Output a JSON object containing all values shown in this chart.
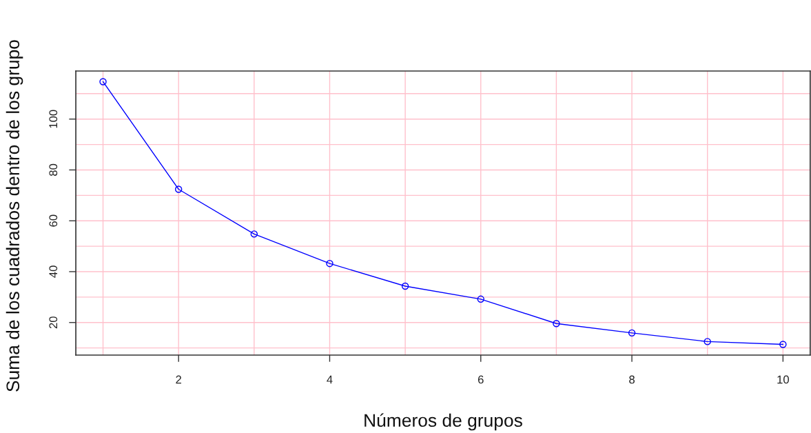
{
  "chart_data": {
    "type": "line",
    "xlabel": "Números de grupos",
    "ylabel": "Suma de los cuadrados dentro de los grupo",
    "x": [
      1,
      2,
      3,
      4,
      5,
      6,
      7,
      8,
      9,
      10
    ],
    "series": [
      {
        "color": "#0000ff",
        "values": [
          114.7,
          72.4,
          54.8,
          43.2,
          34.3,
          29.2,
          19.6,
          15.9,
          12.5,
          11.4
        ]
      }
    ],
    "marker": "circle",
    "line_style": "solid",
    "xlim": [
      0.64,
      10.36
    ],
    "ylim": [
      7.2,
      118.9
    ],
    "xticks": [
      2,
      4,
      6,
      8,
      10
    ],
    "yticks": [
      20,
      40,
      60,
      80,
      100
    ],
    "ref_lines": [
      {
        "axis": "x",
        "value": 1,
        "color": "#ffc0cb"
      },
      {
        "axis": "x",
        "value": 2,
        "color": "#ffc0cb"
      },
      {
        "axis": "x",
        "value": 3,
        "color": "#ffc0cb"
      },
      {
        "axis": "x",
        "value": 4,
        "color": "#ffc0cb"
      },
      {
        "axis": "x",
        "value": 5,
        "color": "#ffc0cb"
      },
      {
        "axis": "x",
        "value": 6,
        "color": "#ffc0cb"
      },
      {
        "axis": "x",
        "value": 7,
        "color": "#ffc0cb"
      },
      {
        "axis": "x",
        "value": 8,
        "color": "#ffc0cb"
      },
      {
        "axis": "x",
        "value": 9,
        "color": "#ffc0cb"
      },
      {
        "axis": "x",
        "value": 10,
        "color": "#ffc0cb"
      },
      {
        "axis": "y",
        "value": 10,
        "color": "#ffc0cb"
      },
      {
        "axis": "y",
        "value": 20,
        "color": "#ffc0cb"
      },
      {
        "axis": "y",
        "value": 30,
        "color": "#ffc0cb"
      },
      {
        "axis": "y",
        "value": 40,
        "color": "#ffc0cb"
      },
      {
        "axis": "y",
        "value": 50,
        "color": "#ffc0cb"
      },
      {
        "axis": "y",
        "value": 60,
        "color": "#ffc0cb"
      },
      {
        "axis": "y",
        "value": 70,
        "color": "#ffc0cb"
      },
      {
        "axis": "y",
        "value": 80,
        "color": "#ffc0cb"
      },
      {
        "axis": "y",
        "value": 90,
        "color": "#ffc0cb"
      },
      {
        "axis": "y",
        "value": 100,
        "color": "#ffc0cb"
      },
      {
        "axis": "y",
        "value": 110,
        "color": "#ffc0cb"
      }
    ]
  }
}
